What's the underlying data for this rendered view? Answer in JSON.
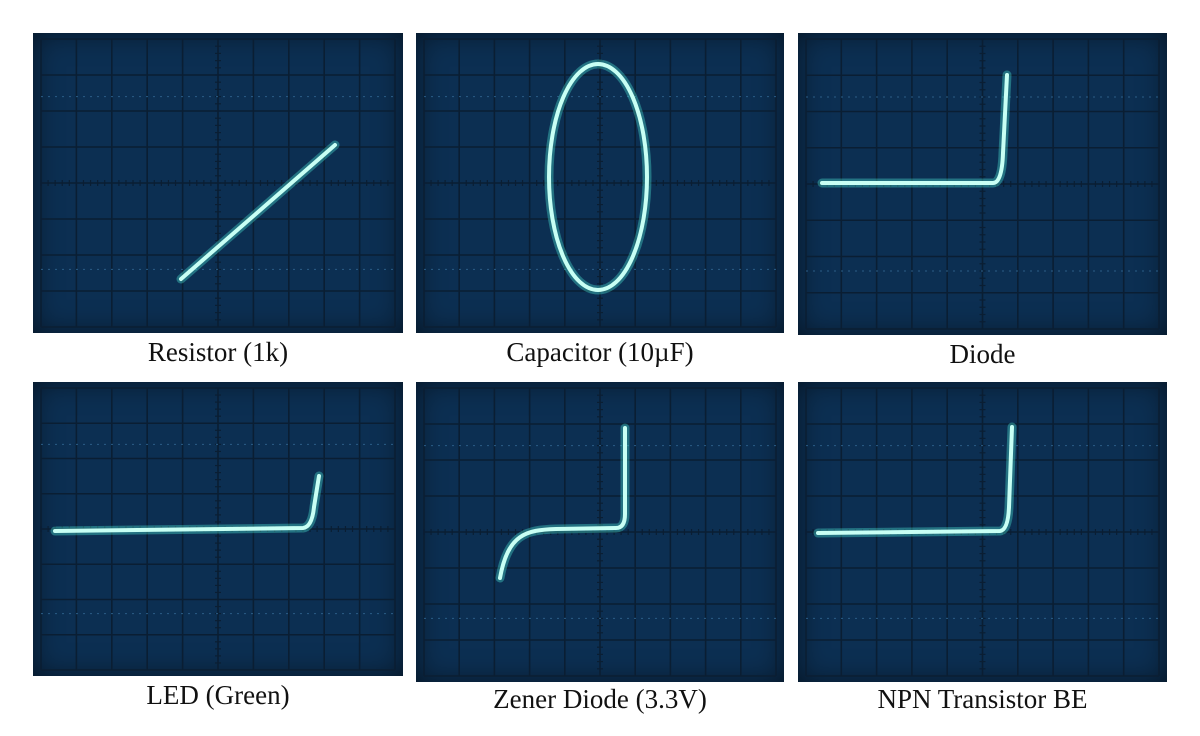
{
  "panels": [
    {
      "caption": "Resistor (1k)",
      "trace": "resistor"
    },
    {
      "caption": "Capacitor (10µF)",
      "trace": "capacitor"
    },
    {
      "caption": "Diode",
      "trace": "diode"
    },
    {
      "caption": "LED (Green)",
      "trace": "led"
    },
    {
      "caption": "Zener Diode (3.3V)",
      "trace": "zener"
    },
    {
      "caption": "NPN Transistor BE",
      "trace": "npn-be"
    }
  ],
  "colors": {
    "screen": "#0c2f52",
    "grid": "#0a1e33",
    "trace": "#c8fff4",
    "trace_glow": "#4ff0dc"
  }
}
